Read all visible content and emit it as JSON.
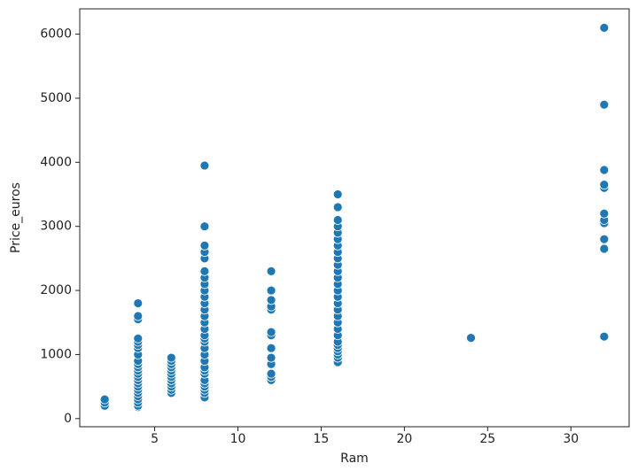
{
  "chart_data": {
    "type": "scatter",
    "xlabel": "Ram",
    "ylabel": "Price_euros",
    "color": "#1f77b4",
    "xlim": [
      0.5,
      33.5
    ],
    "ylim": [
      -127,
      6395
    ],
    "xticks": [
      5,
      10,
      15,
      20,
      25,
      30
    ],
    "yticks": [
      0,
      1000,
      2000,
      3000,
      4000,
      5000,
      6000
    ],
    "x": [
      2,
      2,
      2,
      4,
      4,
      4,
      4,
      4,
      4,
      4,
      4,
      4,
      4,
      4,
      4,
      4,
      4,
      4,
      4,
      4,
      4,
      4,
      4,
      4,
      4,
      4,
      4,
      6,
      6,
      6,
      6,
      6,
      6,
      6,
      6,
      6,
      6,
      6,
      6,
      8,
      8,
      8,
      8,
      8,
      8,
      8,
      8,
      8,
      8,
      8,
      8,
      8,
      8,
      8,
      8,
      8,
      8,
      8,
      8,
      8,
      8,
      8,
      8,
      8,
      8,
      8,
      8,
      8,
      8,
      12,
      12,
      12,
      12,
      12,
      12,
      12,
      12,
      12,
      12,
      12,
      12,
      12,
      16,
      16,
      16,
      16,
      16,
      16,
      16,
      16,
      16,
      16,
      16,
      16,
      16,
      16,
      16,
      16,
      16,
      16,
      16,
      16,
      16,
      16,
      16,
      16,
      16,
      16,
      16,
      16,
      24,
      32,
      32,
      32,
      32,
      32,
      32,
      32,
      32,
      32,
      32,
      32
    ],
    "values": [
      200,
      250,
      300,
      180,
      200,
      250,
      300,
      350,
      400,
      450,
      500,
      550,
      600,
      650,
      700,
      750,
      800,
      850,
      900,
      1000,
      1100,
      1150,
      1200,
      1250,
      1550,
      1600,
      1800,
      400,
      450,
      500,
      550,
      600,
      650,
      700,
      750,
      800,
      850,
      900,
      950,
      330,
      400,
      450,
      500,
      550,
      600,
      700,
      750,
      800,
      900,
      1000,
      1100,
      1200,
      1250,
      1300,
      1400,
      1500,
      1600,
      1700,
      1800,
      1900,
      2000,
      2100,
      2200,
      2300,
      2500,
      2600,
      2700,
      3000,
      3950,
      600,
      650,
      700,
      850,
      950,
      1100,
      1300,
      1350,
      1700,
      1750,
      1850,
      2000,
      2300,
      880,
      950,
      1000,
      1050,
      1100,
      1150,
      1200,
      1300,
      1400,
      1500,
      1600,
      1700,
      1800,
      1900,
      2000,
      2100,
      2200,
      2300,
      2400,
      2500,
      2600,
      2700,
      2800,
      2900,
      3000,
      3100,
      3300,
      3500,
      1260,
      1280,
      2650,
      2800,
      3050,
      3100,
      3200,
      3600,
      3650,
      3880,
      4900,
      6100
    ]
  }
}
